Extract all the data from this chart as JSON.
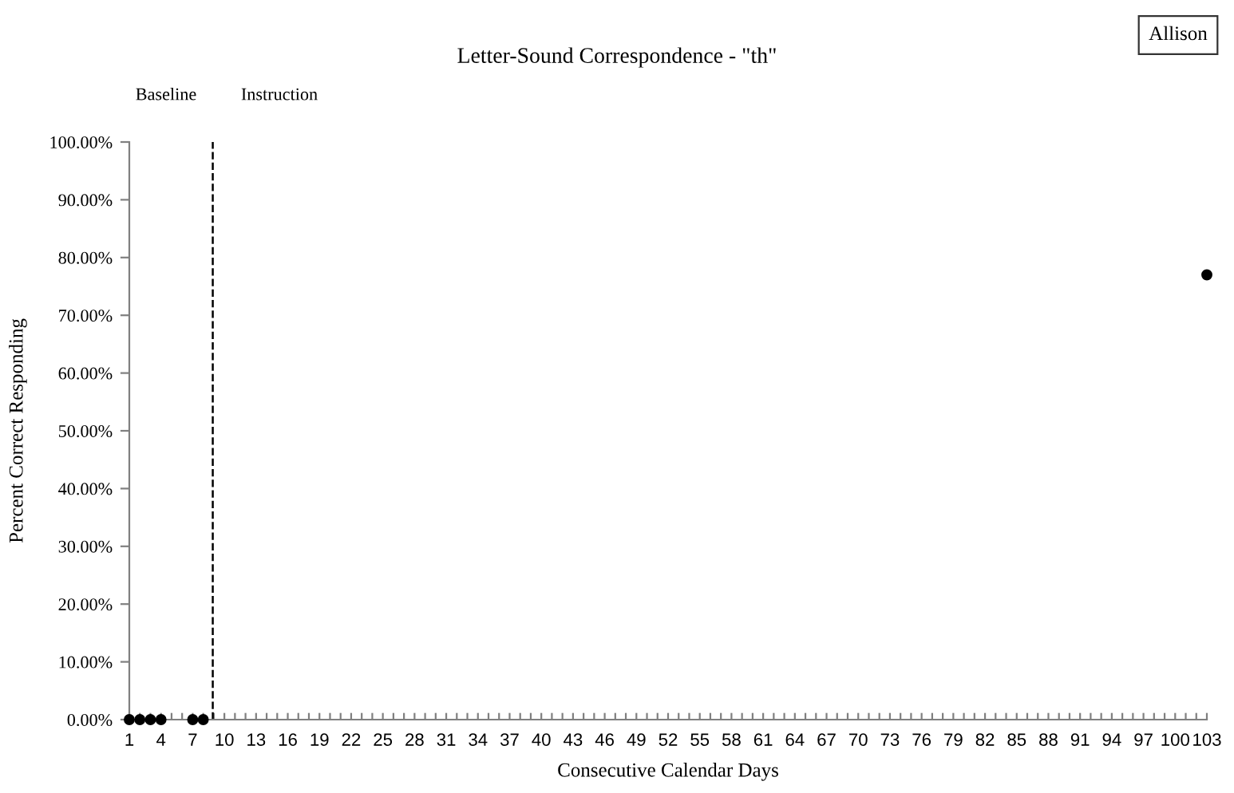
{
  "chart_data": {
    "type": "scatter",
    "title": "Letter-Sound Correspondence - \"th\"",
    "xlabel": "Consecutive Calendar Days",
    "ylabel": "Percent Correct Responding",
    "series": [
      {
        "color": "#000000",
        "x": [
          1,
          2,
          3,
          4,
          7,
          8,
          103
        ],
        "values": [
          0,
          0,
          0,
          0,
          0,
          0,
          77
        ]
      }
    ],
    "marker": "circle",
    "xlim": [
      1,
      103
    ],
    "xticks": [
      1,
      {
        "value": 2,
        "label": null
      },
      {
        "value": 3,
        "label": null
      },
      4,
      {
        "value": 5,
        "label": null
      },
      {
        "value": 6,
        "label": null
      },
      7,
      {
        "value": 8,
        "label": null
      },
      {
        "value": 9,
        "label": null
      },
      10,
      {
        "value": 11,
        "label": null
      },
      {
        "value": 12,
        "label": null
      },
      13,
      {
        "value": 14,
        "label": null
      },
      {
        "value": 15,
        "label": null
      },
      16,
      {
        "value": 17,
        "label": null
      },
      {
        "value": 18,
        "label": null
      },
      19,
      {
        "value": 20,
        "label": null
      },
      {
        "value": 21,
        "label": null
      },
      22,
      {
        "value": 23,
        "label": null
      },
      {
        "value": 24,
        "label": null
      },
      25,
      {
        "value": 26,
        "label": null
      },
      {
        "value": 27,
        "label": null
      },
      28,
      {
        "value": 29,
        "label": null
      },
      {
        "value": 30,
        "label": null
      },
      31,
      {
        "value": 32,
        "label": null
      },
      {
        "value": 33,
        "label": null
      },
      34,
      {
        "value": 35,
        "label": null
      },
      {
        "value": 36,
        "label": null
      },
      37,
      {
        "value": 38,
        "label": null
      },
      {
        "value": 39,
        "label": null
      },
      40,
      {
        "value": 41,
        "label": null
      },
      {
        "value": 42,
        "label": null
      },
      43,
      {
        "value": 44,
        "label": null
      },
      {
        "value": 45,
        "label": null
      },
      46,
      {
        "value": 47,
        "label": null
      },
      {
        "value": 48,
        "label": null
      },
      49,
      {
        "value": 50,
        "label": null
      },
      {
        "value": 51,
        "label": null
      },
      52,
      {
        "value": 53,
        "label": null
      },
      {
        "value": 54,
        "label": null
      },
      55,
      {
        "value": 56,
        "label": null
      },
      {
        "value": 57,
        "label": null
      },
      58,
      {
        "value": 59,
        "label": null
      },
      {
        "value": 60,
        "label": null
      },
      61,
      {
        "value": 62,
        "label": null
      },
      {
        "value": 63,
        "label": null
      },
      64,
      {
        "value": 65,
        "label": null
      },
      {
        "value": 66,
        "label": null
      },
      67,
      {
        "value": 68,
        "label": null
      },
      {
        "value": 69,
        "label": null
      },
      70,
      {
        "value": 71,
        "label": null
      },
      {
        "value": 72,
        "label": null
      },
      73,
      {
        "value": 74,
        "label": null
      },
      {
        "value": 75,
        "label": null
      },
      76,
      {
        "value": 77,
        "label": null
      },
      {
        "value": 78,
        "label": null
      },
      79,
      {
        "value": 80,
        "label": null
      },
      {
        "value": 81,
        "label": null
      },
      82,
      {
        "value": 83,
        "label": null
      },
      {
        "value": 84,
        "label": null
      },
      85,
      {
        "value": 86,
        "label": null
      },
      {
        "value": 87,
        "label": null
      },
      88,
      {
        "value": 89,
        "label": null
      },
      {
        "value": 90,
        "label": null
      },
      91,
      {
        "value": 92,
        "label": null
      },
      {
        "value": 93,
        "label": null
      },
      94,
      {
        "value": 95,
        "label": null
      },
      {
        "value": 96,
        "label": null
      },
      97,
      {
        "value": 98,
        "label": null
      },
      {
        "value": 99,
        "label": null
      },
      100,
      {
        "value": 101,
        "label": null
      },
      {
        "value": 102,
        "label": null
      },
      103
    ],
    "ylim": [
      0,
      100
    ],
    "yticks": [
      {
        "value": 0,
        "label": "0.00%"
      },
      {
        "value": 10,
        "label": "10.00%"
      },
      {
        "value": 20,
        "label": "20.00%"
      },
      {
        "value": 30,
        "label": "30.00%"
      },
      {
        "value": 40,
        "label": "40.00%"
      },
      {
        "value": 50,
        "label": "50.00%"
      },
      {
        "value": 60,
        "label": "60.00%"
      },
      {
        "value": 70,
        "label": "70.00%"
      },
      {
        "value": 80,
        "label": "80.00%"
      },
      {
        "value": 90,
        "label": "90.00%"
      },
      {
        "value": 100,
        "label": "100.00%"
      }
    ],
    "ref_lines": [
      {
        "axis": "x",
        "value": 8.9,
        "color": "#000000",
        "line_style": "dashed"
      }
    ],
    "annotations": [
      "Baseline",
      "Instruction",
      "Allison"
    ],
    "grid": false,
    "legend": false
  }
}
